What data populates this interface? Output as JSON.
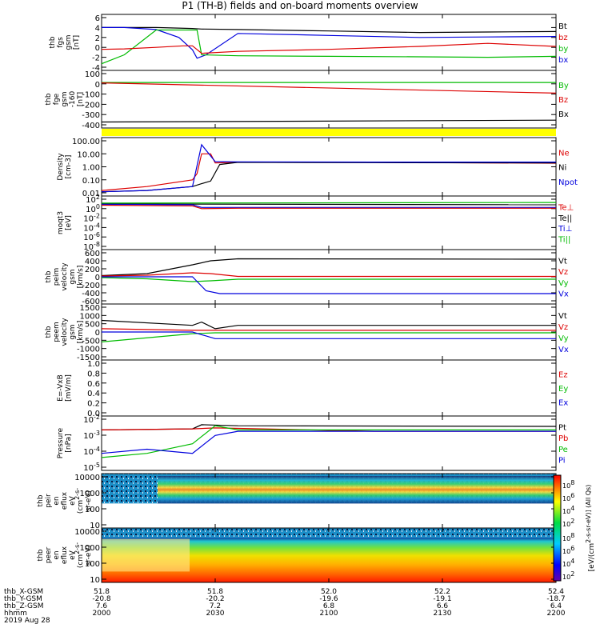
{
  "title": "P1 (TH-B) fields and on-board moments overview",
  "chart_data": [
    {
      "type": "line",
      "ylabel": [
        "thb",
        "fgs",
        "gsm",
        "[nT]"
      ],
      "ticks": [
        "6",
        "4",
        "2",
        "0",
        "-2",
        "-4"
      ],
      "ylim": [
        -4,
        6
      ],
      "legend": [
        {
          "name": "Bt",
          "color": "#000000"
        },
        {
          "name": "bz",
          "color": "#dd0000"
        },
        {
          "name": "by",
          "color": "#00bb00"
        },
        {
          "name": "bx",
          "color": "#0000dd"
        }
      ],
      "series": [
        {
          "name": "Bt",
          "color": "#000000",
          "x": [
            0,
            0.03,
            0.12,
            0.2,
            0.22,
            0.3,
            0.5,
            0.7,
            0.85,
            1
          ],
          "y": [
            4,
            4,
            4,
            3.8,
            3.7,
            3.6,
            3.3,
            3.0,
            3.1,
            3.2
          ]
        },
        {
          "name": "bx",
          "color": "#0000dd",
          "x": [
            0,
            0.05,
            0.12,
            0.17,
            0.2,
            0.21,
            0.23,
            0.3,
            0.5,
            0.7,
            0.85,
            1
          ],
          "y": [
            4,
            4,
            3.6,
            2,
            -0.5,
            -2.2,
            -1.5,
            2.8,
            2.4,
            2.0,
            2.1,
            2.2
          ]
        },
        {
          "name": "by",
          "color": "#00bb00",
          "x": [
            0,
            0.05,
            0.12,
            0.18,
            0.2,
            0.21,
            0.22,
            0.3,
            0.5,
            0.7,
            0.85,
            1
          ],
          "y": [
            -3.3,
            -1.5,
            3.5,
            3.5,
            3.5,
            3.5,
            -1.5,
            -1.7,
            -1.8,
            -1.9,
            -2.0,
            -1.8
          ]
        },
        {
          "name": "bz",
          "color": "#dd0000",
          "x": [
            0,
            0.05,
            0.12,
            0.18,
            0.2,
            0.22,
            0.3,
            0.5,
            0.7,
            0.85,
            1
          ],
          "y": [
            -0.4,
            -0.3,
            0,
            0.3,
            0.3,
            -1.2,
            -0.8,
            -0.4,
            0.2,
            0.8,
            0.2
          ]
        }
      ]
    },
    {
      "type": "line",
      "ylabel": [
        "thb",
        "fge",
        "gsm",
        "-160",
        "[nT]"
      ],
      "ticks": [
        "100",
        "0",
        "-100",
        "-200",
        "-300",
        "-400"
      ],
      "ylim": [
        -450,
        100
      ],
      "legend": [
        {
          "name": "By",
          "color": "#00bb00"
        },
        {
          "name": "Bz",
          "color": "#dd0000"
        },
        {
          "name": "Bx",
          "color": "#000000"
        }
      ],
      "series": [
        {
          "name": "By",
          "color": "#00bb00",
          "x": [
            0,
            1
          ],
          "y": [
            5,
            5
          ]
        },
        {
          "name": "Bz",
          "color": "#dd0000",
          "x": [
            0,
            1
          ],
          "y": [
            0,
            -110
          ]
        },
        {
          "name": "Bx",
          "color": "#000000",
          "x": [
            0,
            1
          ],
          "y": [
            -420,
            -400
          ]
        }
      ]
    },
    {
      "type": "line",
      "ylabel": [
        "Density",
        "[cm-3]"
      ],
      "ticks": [
        "100.00",
        "10.00",
        "1.00",
        "0.10",
        "0.01"
      ],
      "log": true,
      "ylim": [
        0.01,
        100
      ],
      "legend": [
        {
          "name": "Ne",
          "color": "#dd0000"
        },
        {
          "name": "Ni",
          "color": "#000000"
        },
        {
          "name": "Npot",
          "color": "#0000dd"
        }
      ],
      "series": [
        {
          "name": "Ne",
          "color": "#dd0000",
          "x": [
            0,
            0.1,
            0.2,
            0.21,
            0.22,
            0.24,
            0.25,
            0.3,
            0.6,
            1
          ],
          "y": [
            0.015,
            0.03,
            0.1,
            0.3,
            10,
            10,
            2,
            2.2,
            2.2,
            1.9
          ]
        },
        {
          "name": "Ni",
          "color": "#000000",
          "x": [
            0,
            0.1,
            0.2,
            0.22,
            0.24,
            0.26,
            0.3,
            0.6,
            1
          ],
          "y": [
            0.012,
            0.015,
            0.03,
            0.05,
            0.08,
            1.5,
            2.2,
            2.1,
            2
          ]
        },
        {
          "name": "Npot",
          "color": "#0000dd",
          "x": [
            0,
            0.1,
            0.2,
            0.22,
            0.25,
            0.3,
            0.6,
            1
          ],
          "y": [
            0.012,
            0.015,
            0.03,
            50,
            2.5,
            2.4,
            2.3,
            2.3
          ]
        }
      ]
    },
    {
      "type": "line",
      "ylabel": [
        "moqt3",
        "[eV]"
      ],
      "ticks": [
        "10^2",
        "10^0",
        "10^-2",
        "10^-4",
        "10^-6",
        "10^-8"
      ],
      "log": true,
      "ylim": [
        1e-09,
        1000
      ],
      "legend": [
        {
          "name": "Te⊥",
          "color": "#dd0000"
        },
        {
          "name": "Te||",
          "color": "#000000"
        },
        {
          "name": "Ti⊥",
          "color": "#0000dd"
        },
        {
          "name": "Ti||",
          "color": "#00bb00"
        }
      ],
      "series": [
        {
          "name": "Te||",
          "color": "#000000",
          "x": [
            0,
            1
          ],
          "y": [
            60,
            40
          ]
        },
        {
          "name": "Ti||",
          "color": "#00bb00",
          "x": [
            0,
            1
          ],
          "y": [
            100,
            150
          ]
        },
        {
          "name": "Ti⊥",
          "color": "#0000dd",
          "x": [
            0,
            0.2,
            0.22,
            1
          ],
          "y": [
            50,
            40,
            8,
            8
          ]
        },
        {
          "name": "Te⊥",
          "color": "#dd0000",
          "x": [
            0,
            0.2,
            0.22,
            0.3,
            1
          ],
          "y": [
            30,
            20,
            4,
            5,
            5
          ]
        }
      ]
    },
    {
      "type": "line",
      "ylabel": [
        "thb",
        "peim",
        "velocity",
        "gsm",
        "[km/s]"
      ],
      "ticks": [
        "600",
        "400",
        "200",
        "0",
        "-200",
        "-400",
        "-600"
      ],
      "ylim": [
        -600,
        600
      ],
      "legend": [
        {
          "name": "Vt",
          "color": "#000000"
        },
        {
          "name": "Vz",
          "color": "#dd0000"
        },
        {
          "name": "Vy",
          "color": "#00bb00"
        },
        {
          "name": "Vx",
          "color": "#0000dd"
        }
      ],
      "series": [
        {
          "name": "Vt",
          "color": "#000000",
          "x": [
            0,
            0.1,
            0.2,
            0.24,
            0.3,
            1
          ],
          "y": [
            30,
            80,
            300,
            400,
            450,
            440
          ]
        },
        {
          "name": "Vz",
          "color": "#dd0000",
          "x": [
            0,
            0.1,
            0.2,
            0.24,
            0.3,
            1
          ],
          "y": [
            20,
            40,
            100,
            80,
            10,
            10
          ]
        },
        {
          "name": "Vy",
          "color": "#00bb00",
          "x": [
            0,
            0.1,
            0.2,
            0.24,
            0.3,
            1
          ],
          "y": [
            -20,
            -50,
            -120,
            -100,
            -60,
            -60
          ]
        },
        {
          "name": "Vx",
          "color": "#0000dd",
          "x": [
            0,
            0.1,
            0.2,
            0.23,
            0.26,
            1
          ],
          "y": [
            0,
            0,
            0,
            -350,
            -420,
            -420
          ]
        }
      ]
    },
    {
      "type": "line",
      "ylabel": [
        "thb",
        "peem",
        "velocity",
        "gsm",
        "[km/s]"
      ],
      "ticks": [
        "1500",
        "1000",
        "500",
        "0",
        "-500",
        "-1000",
        "-1500"
      ],
      "ylim": [
        -1500,
        1500
      ],
      "legend": [
        {
          "name": "Vt",
          "color": "#000000"
        },
        {
          "name": "Vz",
          "color": "#dd0000"
        },
        {
          "name": "Vy",
          "color": "#00bb00"
        },
        {
          "name": "Vx",
          "color": "#0000dd"
        }
      ],
      "series": [
        {
          "name": "Vt",
          "color": "#000000",
          "x": [
            0,
            0.2,
            0.22,
            0.25,
            0.3,
            1
          ],
          "y": [
            700,
            400,
            600,
            200,
            400,
            400
          ]
        },
        {
          "name": "Vz",
          "color": "#dd0000",
          "x": [
            0,
            0.2,
            0.25,
            1
          ],
          "y": [
            200,
            100,
            100,
            100
          ]
        },
        {
          "name": "Vy",
          "color": "#00bb00",
          "x": [
            0,
            0.2,
            0.25,
            1
          ],
          "y": [
            -600,
            -100,
            -50,
            -50
          ]
        },
        {
          "name": "Vx",
          "color": "#0000dd",
          "x": [
            0,
            0.2,
            0.25,
            1
          ],
          "y": [
            0,
            0,
            -400,
            -400
          ]
        }
      ]
    },
    {
      "type": "line",
      "ylabel": [
        "E=-VxB",
        "[mV/m]"
      ],
      "ticks": [
        "1.0",
        "0.8",
        "0.6",
        "0.4",
        "0.2",
        "0.0"
      ],
      "ylim": [
        0,
        1
      ],
      "legend": [
        {
          "name": "Ez",
          "color": "#dd0000"
        },
        {
          "name": "Ey",
          "color": "#00bb00"
        },
        {
          "name": "Ex",
          "color": "#0000dd"
        }
      ],
      "series": []
    },
    {
      "type": "line",
      "ylabel": [
        "Pressure",
        "[nPa]"
      ],
      "ticks": [
        "10^-2",
        "10^-3",
        "10^-4",
        "10^-5"
      ],
      "log": true,
      "ylim": [
        1e-05,
        0.03
      ],
      "legend": [
        {
          "name": "Pt",
          "color": "#000000"
        },
        {
          "name": "Pb",
          "color": "#dd0000"
        },
        {
          "name": "Pe",
          "color": "#00bb00"
        },
        {
          "name": "Pi",
          "color": "#0000dd"
        }
      ],
      "series": [
        {
          "name": "Pt",
          "color": "#000000",
          "x": [
            0,
            0.2,
            0.22,
            0.3,
            1
          ],
          "y": [
            0.005,
            0.006,
            0.012,
            0.01,
            0.009
          ]
        },
        {
          "name": "Pb",
          "color": "#dd0000",
          "x": [
            0,
            0.2,
            0.25,
            0.6,
            1
          ],
          "y": [
            0.005,
            0.006,
            0.007,
            0.004,
            0.004
          ]
        },
        {
          "name": "Pe",
          "color": "#00bb00",
          "x": [
            0,
            0.1,
            0.2,
            0.25,
            0.3,
            1
          ],
          "y": [
            5e-05,
            0.0001,
            0.0005,
            0.01,
            0.005,
            0.005
          ]
        },
        {
          "name": "Pi",
          "color": "#0000dd",
          "x": [
            0,
            0.1,
            0.2,
            0.25,
            0.3,
            1
          ],
          "y": [
            0.0001,
            0.0002,
            0.0001,
            0.002,
            0.004,
            0.004
          ]
        }
      ]
    },
    {
      "type": "heatmap",
      "ylabel": [
        "thb",
        "peir",
        "en",
        "eflux",
        "eV",
        "(cm^2-s-",
        "sr-eV)"
      ],
      "ticks": [
        "10000",
        "1000",
        "100",
        "10"
      ],
      "colorbar": [
        "10^8",
        "10^6",
        "10^4",
        "10^2"
      ]
    },
    {
      "type": "heatmap",
      "ylabel": [
        "thb",
        "peer",
        "en",
        "eflux",
        "eV",
        "(cm^2-s-",
        "sr-eV)"
      ],
      "ticks": [
        "10000",
        "1000",
        "100",
        "10"
      ],
      "colorbar": [
        "10^8",
        "10^6",
        "10^4",
        "10^2"
      ]
    }
  ],
  "colorbar_label": "[eV/(cm^2-s-sr-eV)] (All Qs)",
  "xaxis": {
    "rows": [
      "thb_X-GSM",
      "thb_Y-GSM",
      "thb_Z-GSM",
      "hhmm",
      "2019 Aug 28"
    ],
    "cols": [
      [
        "51.8",
        "-20.8",
        "7.6",
        "2000"
      ],
      [
        "51.8",
        "-20.2",
        "7.2",
        "2030"
      ],
      [
        "52.0",
        "-19.6",
        "6.8",
        "2100"
      ],
      [
        "52.2",
        "-19.1",
        "6.6",
        "2130"
      ],
      [
        "52.4",
        "-18.7",
        "6.4",
        "2200"
      ]
    ]
  }
}
